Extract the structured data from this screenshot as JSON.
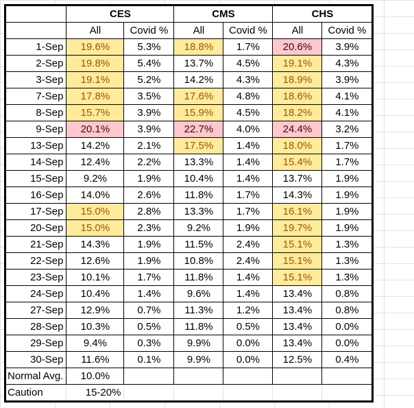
{
  "groups": [
    "CES",
    "CMS",
    "CHS"
  ],
  "subheaders": [
    "All",
    "Covid %",
    "All",
    "Covid %",
    "All",
    "Covid %"
  ],
  "colors": {
    "caution_fill": "#FFEB9C",
    "caution_text": "#9C5700",
    "alert_fill": "#FFC7CE"
  },
  "rows": [
    {
      "date": "1-Sep",
      "v": [
        "19.6%",
        "5.3%",
        "18.8%",
        "1.7%",
        "20.6%",
        "3.9%"
      ],
      "hl": [
        "y",
        "",
        "y",
        "",
        "p",
        ""
      ]
    },
    {
      "date": "2-Sep",
      "v": [
        "19.8%",
        "5.4%",
        "13.7%",
        "4.5%",
        "19.1%",
        "4.3%"
      ],
      "hl": [
        "y",
        "",
        "",
        "",
        "y",
        ""
      ]
    },
    {
      "date": "3-Sep",
      "v": [
        "19.1%",
        "5.2%",
        "14.2%",
        "4.3%",
        "18.9%",
        "3.9%"
      ],
      "hl": [
        "y",
        "",
        "",
        "",
        "y",
        ""
      ]
    },
    {
      "date": "7-Sep",
      "v": [
        "17.8%",
        "3.5%",
        "17.6%",
        "4.8%",
        "18.6%",
        "4.1%"
      ],
      "hl": [
        "y",
        "",
        "y",
        "",
        "y",
        ""
      ]
    },
    {
      "date": "8-Sep",
      "v": [
        "15.7%",
        "3.9%",
        "15.9%",
        "4.5%",
        "18.2%",
        "4.1%"
      ],
      "hl": [
        "y",
        "",
        "y",
        "",
        "y",
        ""
      ]
    },
    {
      "date": "9-Sep",
      "v": [
        "20.1%",
        "3.9%",
        "22.7%",
        "4.0%",
        "24.4%",
        "3.2%"
      ],
      "hl": [
        "p",
        "",
        "p",
        "",
        "p",
        ""
      ]
    },
    {
      "date": "13-Sep",
      "v": [
        "14.2%",
        "2.1%",
        "17.5%",
        "1.4%",
        "18.0%",
        "1.7%"
      ],
      "hl": [
        "",
        "",
        "y",
        "",
        "y",
        ""
      ]
    },
    {
      "date": "14-Sep",
      "v": [
        "12.4%",
        "2.2%",
        "13.3%",
        "1.4%",
        "15.4%",
        "1.7%"
      ],
      "hl": [
        "",
        "",
        "",
        "",
        "y",
        ""
      ]
    },
    {
      "date": "15-Sep",
      "v": [
        "9.2%",
        "1.9%",
        "10.4%",
        "1.4%",
        "13.7%",
        "1.9%"
      ],
      "hl": [
        "",
        "",
        "",
        "",
        "",
        ""
      ]
    },
    {
      "date": "16-Sep",
      "v": [
        "14.0%",
        "2.6%",
        "11.8%",
        "1.7%",
        "14.3%",
        "1.9%"
      ],
      "hl": [
        "",
        "",
        "",
        "",
        "",
        ""
      ]
    },
    {
      "date": "17-Sep",
      "v": [
        "15.0%",
        "2.8%",
        "13.3%",
        "1.7%",
        "16.1%",
        "1.9%"
      ],
      "hl": [
        "y",
        "",
        "",
        "",
        "y",
        ""
      ]
    },
    {
      "date": "20-Sep",
      "v": [
        "15.0%",
        "2.3%",
        "9.2%",
        "1.9%",
        "19.7%",
        "1.9%"
      ],
      "hl": [
        "y",
        "",
        "",
        "",
        "y",
        ""
      ]
    },
    {
      "date": "21-Sep",
      "v": [
        "14.3%",
        "1.9%",
        "11.5%",
        "2.4%",
        "15.1%",
        "1.3%"
      ],
      "hl": [
        "",
        "",
        "",
        "",
        "y",
        ""
      ]
    },
    {
      "date": "22-Sep",
      "v": [
        "12.6%",
        "1.9%",
        "10.8%",
        "2.4%",
        "15.1%",
        "1.3%"
      ],
      "hl": [
        "",
        "",
        "",
        "",
        "y",
        ""
      ]
    },
    {
      "date": "23-Sep",
      "v": [
        "10.1%",
        "1.7%",
        "11.8%",
        "1.4%",
        "15.1%",
        "1.3%"
      ],
      "hl": [
        "",
        "",
        "",
        "",
        "y",
        ""
      ]
    },
    {
      "date": "24-Sep",
      "v": [
        "10.4%",
        "1.4%",
        "9.6%",
        "1.4%",
        "13.4%",
        "0.8%"
      ],
      "hl": [
        "",
        "",
        "",
        "",
        "",
        ""
      ]
    },
    {
      "date": "27-Sep",
      "v": [
        "12.9%",
        "0.7%",
        "11.3%",
        "1.2%",
        "13.4%",
        "0.8%"
      ],
      "hl": [
        "",
        "",
        "",
        "",
        "",
        ""
      ]
    },
    {
      "date": "28-Sep",
      "v": [
        "10.3%",
        "0.5%",
        "11.8%",
        "0.5%",
        "13.4%",
        "0.0%"
      ],
      "hl": [
        "",
        "",
        "",
        "",
        "",
        ""
      ]
    },
    {
      "date": "29-Sep",
      "v": [
        "9.4%",
        "0.3%",
        "9.9%",
        "0.0%",
        "13.4%",
        "0.0%"
      ],
      "hl": [
        "",
        "",
        "",
        "",
        "",
        ""
      ]
    },
    {
      "date": "30-Sep",
      "v": [
        "11.6%",
        "0.1%",
        "9.9%",
        "0.0%",
        "12.5%",
        "0.4%"
      ],
      "hl": [
        "",
        "",
        "",
        "",
        "",
        ""
      ]
    }
  ],
  "footer": {
    "normal_label": "Normal Avg.",
    "normal_value": "10.0%",
    "caution_label": "Caution",
    "caution_value": "15-20%"
  }
}
